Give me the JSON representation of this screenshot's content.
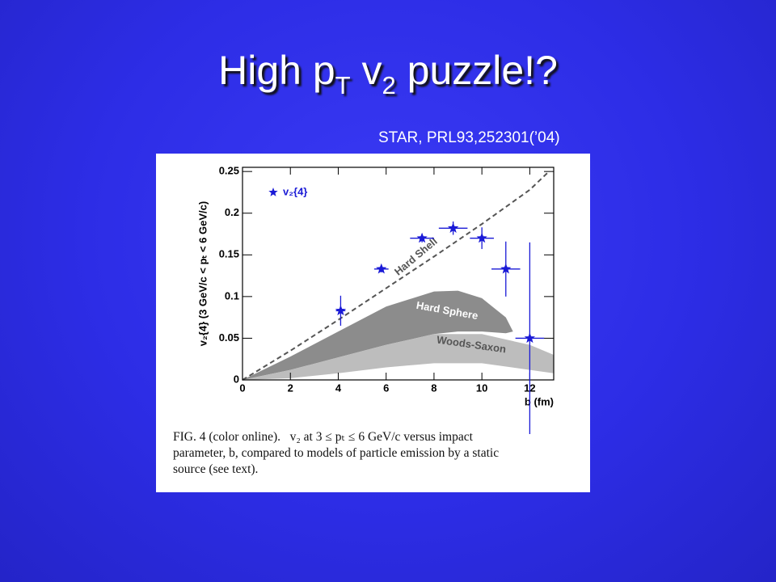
{
  "title": {
    "text1": "High p",
    "sub1": "T",
    "text2": " v",
    "sub2": "2",
    "text3": " puzzle!?"
  },
  "citation": "STAR, PRL93,252301(’04)",
  "caption": [
    "FIG. 4 (color online).   v₂ at 3 ≤ pₜ ≤ 6 GeV/c versus impact",
    "parameter, b, compared to models of particle emission by a static",
    "source (see text)."
  ],
  "chart_data": {
    "type": "scatter",
    "x_label": "b (fm)",
    "y_label": "v₂{4} (3 GeV/c < pₜ < 6 GeV/c)",
    "xlim": [
      0,
      13
    ],
    "ylim": [
      0,
      0.255
    ],
    "xticks": [
      0,
      2,
      4,
      6,
      8,
      10,
      12
    ],
    "yticks": [
      0,
      0.05,
      0.1,
      0.15,
      0.2,
      0.25
    ],
    "series": [
      {
        "name": "v₂{4}",
        "color": "#1a1ad6",
        "x": [
          4.1,
          5.8,
          7.5,
          8.8,
          10.0,
          11.0,
          12.0
        ],
        "values": [
          0.083,
          0.133,
          0.17,
          0.182,
          0.17,
          0.133,
          0.05
        ],
        "xerr": [
          0.2,
          0.3,
          0.5,
          0.6,
          0.5,
          0.6,
          0.6
        ],
        "yerr": [
          0.018,
          0.004,
          0.005,
          0.008,
          0.013,
          0.033,
          0.115
        ]
      }
    ],
    "curves": [
      {
        "name": "Hard Shell",
        "color": "#555555",
        "x": [
          0,
          2,
          4,
          6,
          8,
          10,
          12,
          12.8
        ],
        "values": [
          0,
          0.035,
          0.072,
          0.11,
          0.148,
          0.187,
          0.228,
          0.25
        ]
      }
    ],
    "bands": [
      {
        "name": "Hard Sphere",
        "color": "#8c8c8c",
        "x": [
          0,
          2,
          4,
          6,
          8,
          9,
          10,
          11,
          11.3
        ],
        "upper": [
          0,
          0.028,
          0.058,
          0.088,
          0.106,
          0.107,
          0.098,
          0.075,
          0.058
        ],
        "lower": [
          0,
          0.012,
          0.027,
          0.042,
          0.055,
          0.058,
          0.058,
          0.056,
          0.058
        ]
      },
      {
        "name": "Woods-Saxon",
        "color": "#bdbdbd",
        "x": [
          0,
          2,
          4,
          6,
          8,
          10,
          12,
          13
        ],
        "upper": [
          0,
          0.012,
          0.027,
          0.042,
          0.055,
          0.055,
          0.042,
          0.03
        ],
        "lower": [
          0,
          0.002,
          0.008,
          0.015,
          0.02,
          0.02,
          0.012,
          0.008
        ]
      }
    ]
  }
}
